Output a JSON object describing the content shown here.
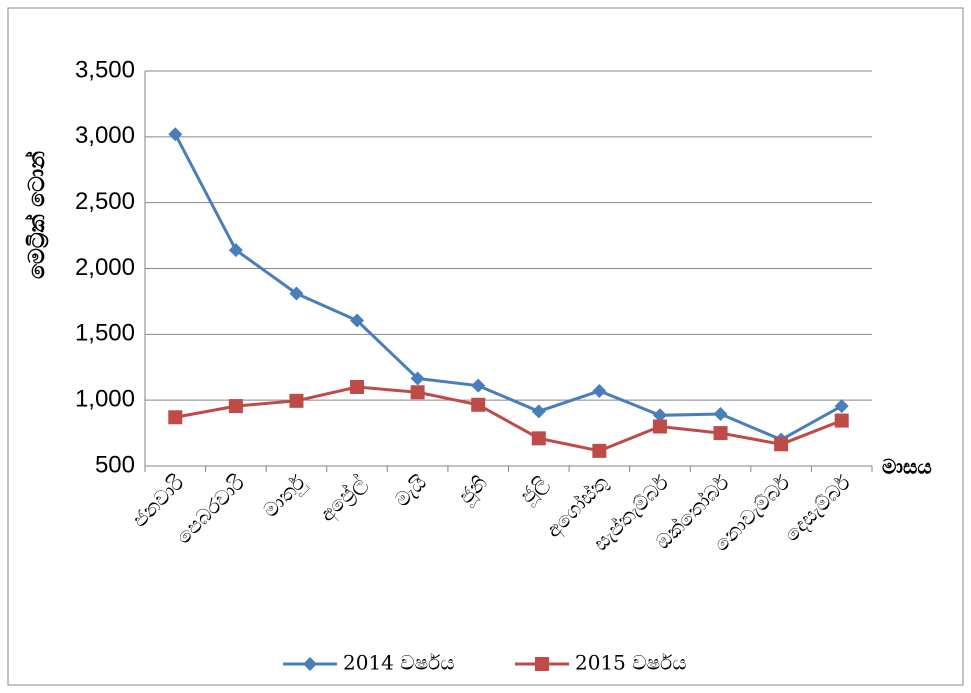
{
  "chart_data": {
    "type": "line",
    "y_label": "මෙට්‍රික් ටොන්",
    "x_label": "මාසය",
    "categories": [
      "ජනවාරි",
      "පෙබරවාරි",
      "මාර්තු",
      "අප්‍රේල්",
      "මැයි",
      "ජූනි",
      "ජූලි",
      "අගෝස්තු",
      "සැප්තැම්බර්",
      "ඔක්තෝබර්",
      "නොවැම්බර්",
      "දෙසැම්බර්"
    ],
    "series": [
      {
        "name": "2014 වර්ෂය",
        "color": "#4a7ebb",
        "marker": "diamond",
        "values": [
          3020,
          2140,
          1810,
          1605,
          1165,
          1110,
          915,
          1070,
          885,
          895,
          700,
          955
        ]
      },
      {
        "name": "2015 වර්ෂය",
        "color": "#be4b48",
        "marker": "square",
        "values": [
          870,
          955,
          995,
          1100,
          1060,
          965,
          710,
          615,
          800,
          750,
          665,
          845
        ]
      }
    ],
    "ylim": [
      500,
      3500
    ],
    "yticks": [
      500,
      {
        "value": 1000,
        "label": "1,000"
      },
      {
        "value": 1500,
        "label": "1,500"
      },
      {
        "value": 2000,
        "label": "2,000"
      },
      {
        "value": 2500,
        "label": "2,500"
      },
      {
        "value": 3000,
        "label": "3,000"
      },
      {
        "value": 3500,
        "label": "3,500"
      }
    ],
    "grid": true,
    "legend": "bottom"
  }
}
